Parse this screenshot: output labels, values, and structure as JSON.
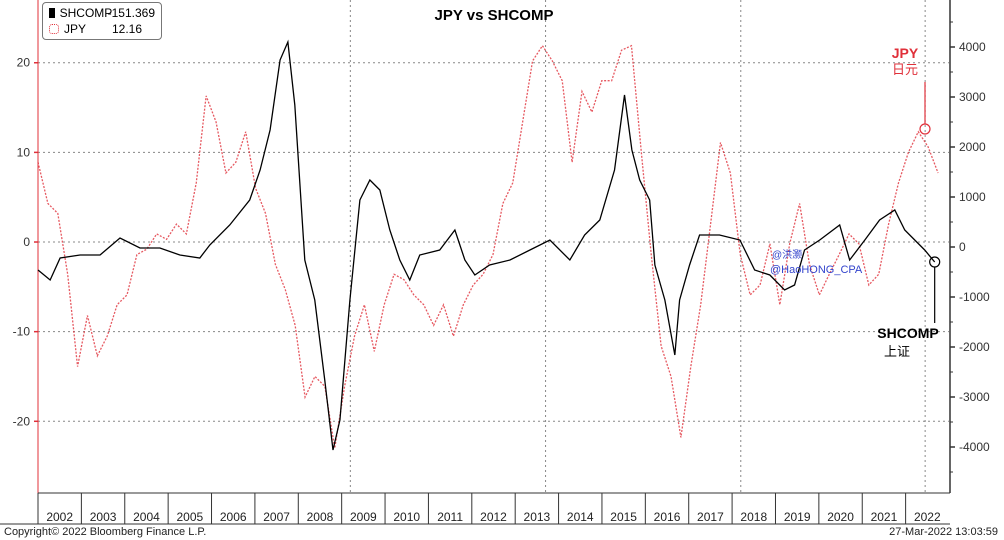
{
  "chart_data": {
    "type": "line",
    "title": "JPY vs SHCOMP",
    "xlabel": "",
    "x_ticks": [
      "2002",
      "2003",
      "2004",
      "2005",
      "2006",
      "2007",
      "2008",
      "2009",
      "2010",
      "2011",
      "2012",
      "2013",
      "2014",
      "2015",
      "2016",
      "2017",
      "2018",
      "2019",
      "2020",
      "2021",
      "2022"
    ],
    "xlim": [
      2002,
      2023
    ],
    "left_axis": {
      "series": "JPY",
      "ylim": [
        -28,
        27
      ],
      "ticks": [
        20,
        10,
        0,
        -10,
        -20
      ],
      "color": "#e0303a"
    },
    "right_axis": {
      "series": "SHCOMP",
      "ylim": [
        -4920,
        4940
      ],
      "ticks": [
        4000,
        3000,
        2000,
        1000,
        0,
        -1000,
        -2000,
        -3000,
        -4000
      ],
      "color": "#000000"
    },
    "legend": {
      "placement": "top-left",
      "entries": [
        {
          "name": "SHCOMP",
          "value": "-151.369"
        },
        {
          "name": "JPY",
          "value": "12.16"
        }
      ]
    },
    "series": [
      {
        "name": "SHCOMP",
        "axis": "right",
        "color": "#000000",
        "style": "solid",
        "points": [
          [
            2002.0,
            -460
          ],
          [
            2002.28,
            -660
          ],
          [
            2002.51,
            -220
          ],
          [
            2002.97,
            -160
          ],
          [
            2003.43,
            -160
          ],
          [
            2003.89,
            180
          ],
          [
            2004.35,
            -20
          ],
          [
            2004.81,
            -20
          ],
          [
            2005.27,
            -160
          ],
          [
            2005.73,
            -220
          ],
          [
            2005.96,
            40
          ],
          [
            2006.42,
            440
          ],
          [
            2006.88,
            940
          ],
          [
            2007.12,
            1540
          ],
          [
            2007.35,
            2340
          ],
          [
            2007.58,
            3740
          ],
          [
            2007.76,
            4100
          ],
          [
            2007.92,
            2840
          ],
          [
            2008.15,
            -260
          ],
          [
            2008.38,
            -1060
          ],
          [
            2008.61,
            -2660
          ],
          [
            2008.8,
            -4060
          ],
          [
            2008.96,
            -3460
          ],
          [
            2009.19,
            -1060
          ],
          [
            2009.42,
            940
          ],
          [
            2009.65,
            1340
          ],
          [
            2009.88,
            1140
          ],
          [
            2010.11,
            340
          ],
          [
            2010.34,
            -260
          ],
          [
            2010.57,
            -660
          ],
          [
            2010.8,
            -160
          ],
          [
            2011.26,
            -60
          ],
          [
            2011.61,
            340
          ],
          [
            2011.84,
            -260
          ],
          [
            2012.07,
            -560
          ],
          [
            2012.41,
            -360
          ],
          [
            2012.88,
            -260
          ],
          [
            2013.34,
            -60
          ],
          [
            2013.8,
            140
          ],
          [
            2014.26,
            -260
          ],
          [
            2014.6,
            240
          ],
          [
            2014.95,
            540
          ],
          [
            2015.29,
            1540
          ],
          [
            2015.52,
            3040
          ],
          [
            2015.69,
            1940
          ],
          [
            2015.87,
            1340
          ],
          [
            2016.1,
            940
          ],
          [
            2016.22,
            -360
          ],
          [
            2016.45,
            -1060
          ],
          [
            2016.68,
            -2160
          ],
          [
            2016.79,
            -1060
          ],
          [
            2017.02,
            -360
          ],
          [
            2017.25,
            240
          ],
          [
            2017.71,
            240
          ],
          [
            2018.18,
            140
          ],
          [
            2018.52,
            -460
          ],
          [
            2018.87,
            -560
          ],
          [
            2019.21,
            -860
          ],
          [
            2019.44,
            -760
          ],
          [
            2019.67,
            -60
          ],
          [
            2020.02,
            140
          ],
          [
            2020.48,
            440
          ],
          [
            2020.71,
            -260
          ],
          [
            2021.06,
            140
          ],
          [
            2021.4,
            540
          ],
          [
            2021.75,
            740
          ],
          [
            2021.98,
            340
          ],
          [
            2022.21,
            140
          ],
          [
            2022.44,
            -60
          ],
          [
            2022.67,
            -300
          ]
        ]
      },
      {
        "name": "JPY",
        "axis": "left",
        "color": "#e0303a",
        "style": "dotted",
        "x_start": 2002.0,
        "x_step": 0.228,
        "values": [
          8.9,
          4.3,
          3.2,
          -3.6,
          -13.9,
          -8.2,
          -12.7,
          -10.5,
          -7.0,
          -5.9,
          -1.4,
          -0.8,
          0.9,
          0.3,
          2.0,
          0.9,
          6.6,
          16.3,
          13.4,
          7.7,
          8.9,
          12.3,
          6.0,
          3.2,
          -2.5,
          -5.3,
          -9.3,
          -17.3,
          -15.0,
          -16.1,
          -23.0,
          -16.1,
          -10.5,
          -7.0,
          -12.2,
          -7.0,
          -3.6,
          -4.2,
          -5.9,
          -7.0,
          -9.3,
          -7.0,
          -10.5,
          -7.0,
          -4.8,
          -3.6,
          -1.4,
          4.3,
          6.6,
          13.4,
          20.2,
          21.9,
          20.2,
          18.0,
          8.9,
          16.8,
          14.5,
          18.0,
          18.0,
          21.4,
          21.9,
          10.0,
          -1.4,
          -11.6,
          -15.0,
          -21.8,
          -13.9,
          -7.0,
          2.0,
          11.1,
          7.7,
          -1.4,
          -5.9,
          -4.8,
          -0.2,
          -7.0,
          -0.2,
          4.3,
          -2.5,
          -5.9,
          -3.6,
          -1.4,
          0.9,
          -0.2,
          -4.8,
          -3.6,
          2.0,
          6.6,
          10.0,
          12.3,
          10.6,
          7.7
        ]
      }
    ],
    "annotations": [
      {
        "text": "JPY",
        "subtext": "日元",
        "color": "#e0303a"
      },
      {
        "text": "SHCOMP",
        "subtext": "上证",
        "color": "#000000"
      }
    ],
    "watermark": [
      "@洪灏",
      "@HaoHONG_CPA"
    ]
  },
  "footer": {
    "copyright": "Copyright© 2022 Bloomberg Finance L.P.",
    "timestamp": "27-Mar-2022 13:03:59"
  }
}
